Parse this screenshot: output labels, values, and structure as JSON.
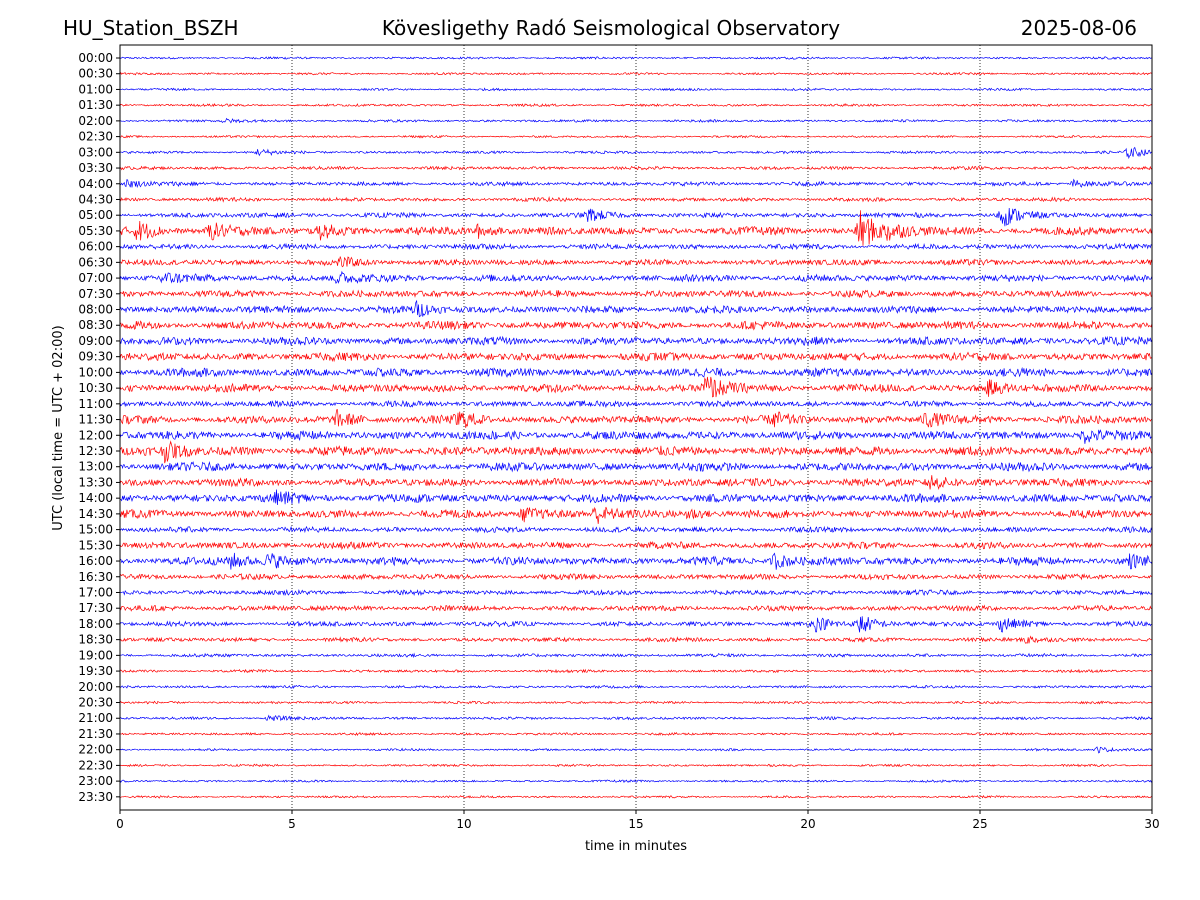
{
  "header": {
    "station": "HU_Station_BSZH",
    "observatory": "Kövesligethy Radó Seismological Observatory",
    "date": "2025-08-06"
  },
  "chart_data": {
    "type": "line",
    "title": "Kövesligethy Radó Seismological Observatory",
    "xlabel": "time in minutes",
    "ylabel": "UTC (local time = UTC + 02:00)",
    "xlim": [
      0,
      30
    ],
    "xticks": [
      "0",
      "5",
      "10",
      "15",
      "20",
      "25",
      "30"
    ],
    "grid": "vertical dotted at 5-minute intervals",
    "colors": {
      "even_rows": "#0000ff",
      "odd_rows": "#ff0000"
    },
    "row_labels": [
      "00:00",
      "00:30",
      "01:00",
      "01:30",
      "02:00",
      "02:30",
      "03:00",
      "03:30",
      "04:00",
      "04:30",
      "05:00",
      "05:30",
      "06:00",
      "06:30",
      "07:00",
      "07:30",
      "08:00",
      "08:30",
      "09:00",
      "09:30",
      "10:00",
      "10:30",
      "11:00",
      "11:30",
      "12:00",
      "12:30",
      "13:00",
      "13:30",
      "14:00",
      "14:30",
      "15:00",
      "15:30",
      "16:00",
      "16:30",
      "17:00",
      "17:30",
      "18:00",
      "18:30",
      "19:00",
      "19:30",
      "20:00",
      "20:30",
      "21:00",
      "21:30",
      "22:00",
      "22:30",
      "23:00",
      "23:30"
    ],
    "noise_levels": [
      0.8,
      0.8,
      0.8,
      0.9,
      0.9,
      0.8,
      1.0,
      1.2,
      1.5,
      1.4,
      1.8,
      3.0,
      2.0,
      2.2,
      2.6,
      2.5,
      2.8,
      3.0,
      3.0,
      3.0,
      3.2,
      3.0,
      2.2,
      3.0,
      3.2,
      3.5,
      3.2,
      3.0,
      3.2,
      3.0,
      2.0,
      2.5,
      3.0,
      2.0,
      1.8,
      2.0,
      1.8,
      1.5,
      1.2,
      1.0,
      1.0,
      0.9,
      1.0,
      0.9,
      0.8,
      0.8,
      0.8,
      0.8
    ],
    "events": [
      {
        "row": "02:00",
        "t": 3.0,
        "amp": 2
      },
      {
        "row": "03:00",
        "t": 4.0,
        "amp": 3
      },
      {
        "row": "03:00",
        "t": 29.3,
        "amp": 6
      },
      {
        "row": "04:00",
        "t": 0.2,
        "amp": 4
      },
      {
        "row": "04:00",
        "t": 27.7,
        "amp": 4
      },
      {
        "row": "05:00",
        "t": 13.6,
        "amp": 6
      },
      {
        "row": "05:00",
        "t": 25.6,
        "amp": 12
      },
      {
        "row": "05:30",
        "t": 0.5,
        "amp": 9
      },
      {
        "row": "05:30",
        "t": 2.6,
        "amp": 8
      },
      {
        "row": "05:30",
        "t": 5.8,
        "amp": 7
      },
      {
        "row": "05:30",
        "t": 10.4,
        "amp": 6
      },
      {
        "row": "05:30",
        "t": 21.5,
        "amp": 20
      },
      {
        "row": "05:30",
        "t": 22.3,
        "amp": 7
      },
      {
        "row": "06:30",
        "t": 6.4,
        "amp": 4
      },
      {
        "row": "07:00",
        "t": 1.2,
        "amp": 5
      },
      {
        "row": "07:00",
        "t": 6.3,
        "amp": 6
      },
      {
        "row": "08:00",
        "t": 8.6,
        "amp": 6
      },
      {
        "row": "10:30",
        "t": 17.0,
        "amp": 14
      },
      {
        "row": "10:30",
        "t": 25.2,
        "amp": 7
      },
      {
        "row": "11:30",
        "t": 6.3,
        "amp": 7
      },
      {
        "row": "11:30",
        "t": 9.8,
        "amp": 8
      },
      {
        "row": "11:30",
        "t": 19.0,
        "amp": 6
      },
      {
        "row": "11:30",
        "t": 23.4,
        "amp": 7
      },
      {
        "row": "12:00",
        "t": 28.0,
        "amp": 7
      },
      {
        "row": "12:30",
        "t": 1.3,
        "amp": 8
      },
      {
        "row": "13:30",
        "t": 23.5,
        "amp": 8
      },
      {
        "row": "14:00",
        "t": 4.5,
        "amp": 5
      },
      {
        "row": "14:30",
        "t": 11.7,
        "amp": 7
      },
      {
        "row": "14:30",
        "t": 13.8,
        "amp": 9
      },
      {
        "row": "14:30",
        "t": 16.5,
        "amp": 6
      },
      {
        "row": "16:00",
        "t": 3.2,
        "amp": 7
      },
      {
        "row": "16:00",
        "t": 4.3,
        "amp": 7
      },
      {
        "row": "16:00",
        "t": 19.0,
        "amp": 8
      },
      {
        "row": "16:00",
        "t": 29.3,
        "amp": 6
      },
      {
        "row": "18:00",
        "t": 20.2,
        "amp": 6
      },
      {
        "row": "18:00",
        "t": 21.5,
        "amp": 10
      },
      {
        "row": "18:00",
        "t": 25.6,
        "amp": 7
      },
      {
        "row": "18:30",
        "t": 26.3,
        "amp": 4
      },
      {
        "row": "21:00",
        "t": 4.3,
        "amp": 3
      },
      {
        "row": "22:00",
        "t": 28.4,
        "amp": 3
      }
    ]
  }
}
